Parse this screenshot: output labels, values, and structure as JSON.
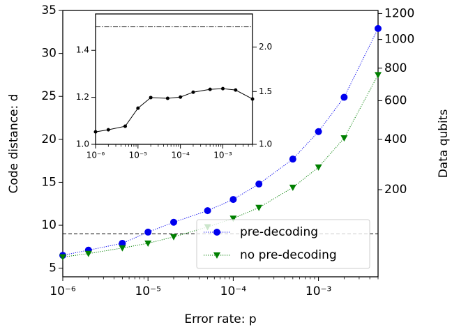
{
  "chart_data": [
    {
      "type": "line",
      "xlabel": "Error rate: p",
      "ylabel": "Code distance: d",
      "y2label": "Data qubits",
      "xscale": "log",
      "y2scale": "sqrt",
      "legend": "lower right",
      "x": [
        1e-06,
        2e-06,
        5e-06,
        1e-05,
        2e-05,
        5e-05,
        0.0001,
        0.0002,
        0.0005,
        0.001,
        0.002,
        0.005
      ],
      "series": [
        {
          "name": "pre-decoding",
          "color": "#0000ee",
          "marker": "circle",
          "values": [
            6.5,
            7.1,
            7.9,
            9.2,
            10.35,
            11.7,
            13.0,
            14.8,
            17.7,
            20.9,
            24.9,
            32.9
          ]
        },
        {
          "name": "no pre-decoding",
          "color": "#008000",
          "marker": "triangle-down",
          "values": [
            6.3,
            6.7,
            7.35,
            7.9,
            8.65,
            9.8,
            10.8,
            12.05,
            14.4,
            16.75,
            20.15,
            27.5
          ]
        }
      ],
      "hline": 9,
      "xlim": [
        1e-06,
        0.005
      ],
      "xticks": [
        {
          "value": 1e-06,
          "label": "10⁻⁶"
        },
        {
          "value": 1e-05,
          "label": "10⁻⁵"
        },
        {
          "value": 0.0001,
          "label": "10⁻⁴"
        },
        {
          "value": 0.001,
          "label": "10⁻³"
        }
      ],
      "ylim": [
        4,
        35
      ],
      "yticks": [
        5,
        10,
        15,
        20,
        25,
        30,
        35
      ],
      "y2lim": [
        16,
        1225
      ],
      "y2ticks": [
        200,
        400,
        600,
        800,
        1000,
        1200
      ]
    },
    {
      "type": "line",
      "xscale": "log",
      "y2scale": "sqrt",
      "color": "#000000",
      "marker": "dot",
      "x": [
        1e-06,
        2e-06,
        5e-06,
        1e-05,
        2e-05,
        5e-05,
        0.0001,
        0.0002,
        0.0005,
        0.001,
        0.002,
        0.005
      ],
      "values": [
        1.053,
        1.062,
        1.077,
        1.154,
        1.199,
        1.196,
        1.201,
        1.222,
        1.234,
        1.237,
        1.231,
        1.193
      ],
      "hline": 1.5,
      "xlim": [
        1e-06,
        0.005
      ],
      "xticks": [
        {
          "value": 1e-06,
          "label": "10⁻⁶"
        },
        {
          "value": 1e-05,
          "label": "10⁻⁵"
        },
        {
          "value": 0.0001,
          "label": "10⁻⁴"
        },
        {
          "value": 0.001,
          "label": "10⁻³"
        }
      ],
      "ylim": [
        1.0,
        1.555
      ],
      "yticks": [
        {
          "value": 1.0,
          "label": "1.0"
        },
        1.2,
        1.4
      ],
      "y2lim": [
        1.0,
        2.418
      ],
      "y2ticks": [
        {
          "value": 1.0,
          "label": "1.0"
        },
        1.5,
        {
          "value": 2.0,
          "label": "2.0"
        }
      ]
    }
  ]
}
